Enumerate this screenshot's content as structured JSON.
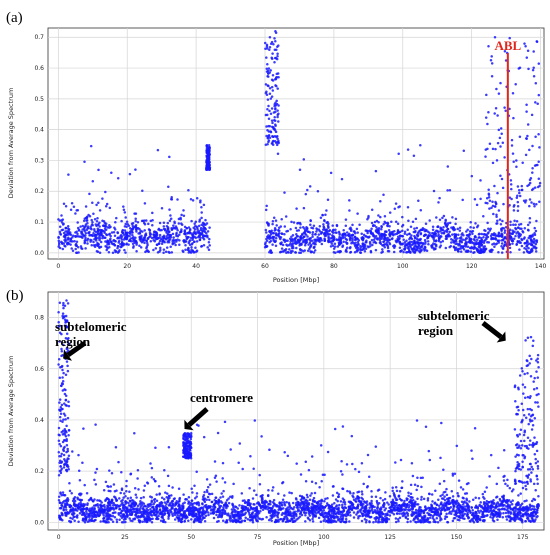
{
  "chart_data": [
    {
      "type": "scatter",
      "panel_label": "(a)",
      "xlabel": "Position [Mbp]",
      "ylabel": "Deviation from Average Spectrum",
      "xlim": [
        -3,
        141
      ],
      "ylim": [
        -0.02,
        0.73
      ],
      "xticks": [
        0,
        20,
        40,
        60,
        80,
        100,
        120,
        140
      ],
      "yticks": [
        0.0,
        0.1,
        0.2,
        0.3,
        0.4,
        0.5,
        0.6,
        0.7
      ],
      "yticklabels": [
        "0.0",
        "0.1",
        "0.2",
        "0.3",
        "0.4",
        "0.5",
        "0.6",
        "0.7"
      ],
      "grid": true,
      "marker_color": "#1a1aff",
      "point_count_approx": 2500,
      "gap_without_data": [
        44,
        60
      ],
      "vline": {
        "x": 130.5,
        "color": "#e0251b",
        "label": "ABL"
      },
      "clusters": [
        {
          "x": [
            43,
            44
          ],
          "y": [
            0.27,
            0.35
          ]
        },
        {
          "x": [
            60,
            64
          ],
          "y": [
            0.35,
            0.72
          ]
        },
        {
          "x": [
            124,
            140
          ],
          "y": [
            0.15,
            0.71
          ]
        }
      ]
    },
    {
      "type": "scatter",
      "panel_label": "(b)",
      "xlabel": "Position [Mbp]",
      "ylabel": "Deviation from Average Spectrum",
      "xlim": [
        -4,
        183
      ],
      "ylim": [
        -0.03,
        0.9
      ],
      "xticks": [
        0,
        25,
        50,
        75,
        100,
        125,
        150,
        175
      ],
      "yticks": [
        0.0,
        0.2,
        0.4,
        0.6,
        0.8
      ],
      "yticklabels": [
        "0.0",
        "0.2",
        "0.4",
        "0.6",
        "0.8"
      ],
      "grid": true,
      "marker_color": "#1a1aff",
      "point_count_approx": 3200,
      "annotations": [
        {
          "text": "subtelomeric\nregion",
          "x": 2,
          "y": 0.66
        },
        {
          "text": "centromere",
          "x": 50,
          "y": 0.37
        },
        {
          "text": "subtelomeric\nregion",
          "x": 179,
          "y": 0.72
        }
      ],
      "clusters": [
        {
          "x": [
            0,
            4
          ],
          "y": [
            0.2,
            0.87
          ]
        },
        {
          "x": [
            47,
            50
          ],
          "y": [
            0.25,
            0.35
          ]
        },
        {
          "x": [
            172,
            181
          ],
          "y": [
            0.15,
            0.73
          ]
        }
      ]
    }
  ]
}
